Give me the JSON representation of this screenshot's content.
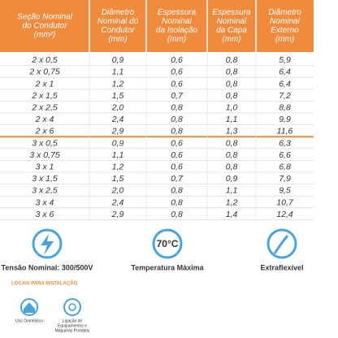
{
  "table": {
    "columns": [
      [
        "Seção Nominal",
        "do Condutor",
        "(mm²)"
      ],
      [
        "Diâmetro",
        "Nominal do",
        "Condutor",
        "(mm)"
      ],
      [
        "Espessura",
        "Nominal",
        "da Isolação",
        "(mm)"
      ],
      [
        "Espessura",
        "Nominal",
        "da Capa",
        "(mm)"
      ],
      [
        "Diâmetro",
        "Nominal",
        "Externo",
        "(mm)"
      ]
    ],
    "rows": [
      [
        "2 x 0,5",
        "0,9",
        "0,6",
        "0,8",
        "5,9"
      ],
      [
        "2 x 0,75",
        "1,1",
        "0,6",
        "0,8",
        "6,4"
      ],
      [
        "2 x 1",
        "1,2",
        "0,6",
        "0,8",
        "6,4"
      ],
      [
        "2 x 1,5",
        "1,5",
        "0,7",
        "0,8",
        "7,2"
      ],
      [
        "2 x 2,5",
        "2,0",
        "0,8",
        "1,0",
        "8,8"
      ],
      [
        "2 x 4",
        "2,4",
        "0,8",
        "1,1",
        "9,9"
      ],
      [
        "2 x 6",
        "2,9",
        "0,8",
        "1,3",
        "11,6"
      ],
      [
        "3 x 0,5",
        "0,9",
        "0,6",
        "0,8",
        "6,3"
      ],
      [
        "3 x 0,75",
        "1,1",
        "0,6",
        "0,8",
        "6,6"
      ],
      [
        "3 x 1",
        "1,2",
        "0,6",
        "0,8",
        "6,8"
      ],
      [
        "3 x 1,5",
        "1,5",
        "0,7",
        "0,9",
        "7,9"
      ],
      [
        "3 x 2,5",
        "2,0",
        "0,8",
        "1,1",
        "9,5"
      ],
      [
        "3 x 4",
        "2,4",
        "0,8",
        "1,2",
        "10,7"
      ],
      [
        "3 x 6",
        "2,9",
        "0,8",
        "1,4",
        "12,4"
      ]
    ]
  },
  "features": [
    {
      "label": "Tensão Nominal: 300/500V"
    },
    {
      "icon_text": "70°C",
      "label": "Temperatura Máxima"
    },
    {
      "label": "Extraflexível"
    }
  ],
  "installation": {
    "title": "LOCAIS PARA INSTALAÇÃO",
    "places": [
      [
        "Uso Doméstico"
      ],
      [
        "Ligação de",
        "Equipamentos e",
        "Máquinas Portáteis"
      ]
    ]
  }
}
